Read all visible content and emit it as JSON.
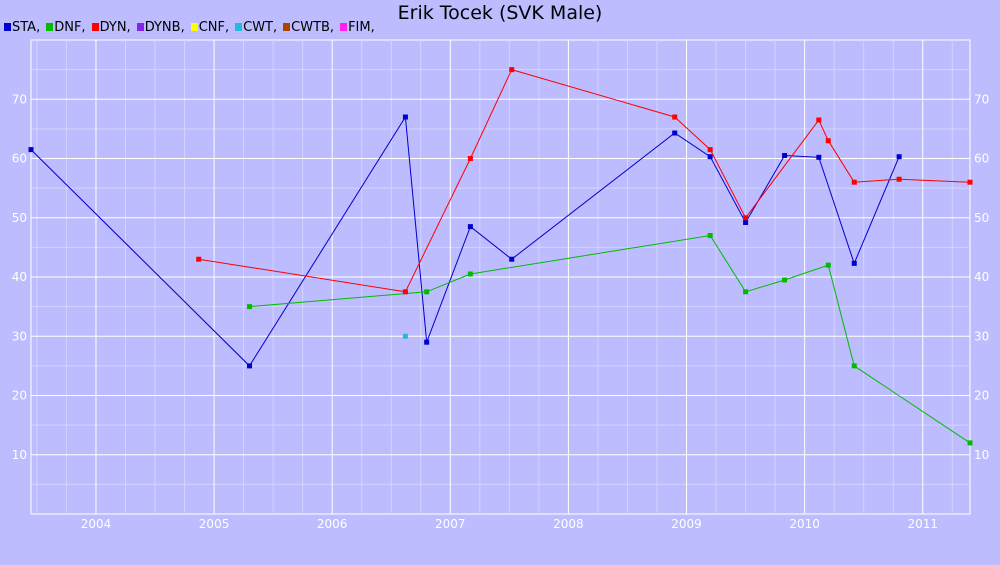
{
  "chart_data": {
    "type": "line",
    "title": "Erik Tocek (SVK Male)",
    "xlabel": "",
    "ylabel": "",
    "grid": true,
    "legend_position": "top-left",
    "xlim": [
      2003.45,
      2011.4
    ],
    "ylim": [
      0,
      80
    ],
    "x_ticks": [
      2004,
      2005,
      2006,
      2007,
      2008,
      2009,
      2010,
      2011
    ],
    "y_ticks": [
      10,
      20,
      30,
      40,
      50,
      60,
      70
    ],
    "series": [
      {
        "name": "STA",
        "color": "#0000cc",
        "points": [
          [
            2003.45,
            61.5
          ],
          [
            2005.3,
            25
          ],
          [
            2006.62,
            67
          ],
          [
            2006.8,
            29
          ],
          [
            2007.17,
            48.5
          ],
          [
            2007.52,
            43
          ],
          [
            2008.9,
            64.3
          ],
          [
            2009.2,
            60.3
          ],
          [
            2009.5,
            49.2
          ],
          [
            2009.83,
            60.5
          ],
          [
            2010.12,
            60.2
          ],
          [
            2010.42,
            42.3
          ],
          [
            2010.8,
            60.3
          ]
        ]
      },
      {
        "name": "DNF",
        "color": "#00bb00",
        "points": [
          [
            2005.3,
            35
          ],
          [
            2006.8,
            37.5
          ],
          [
            2007.17,
            40.5
          ],
          [
            2009.2,
            47
          ],
          [
            2009.5,
            37.5
          ],
          [
            2009.83,
            39.5
          ],
          [
            2010.2,
            42
          ],
          [
            2010.42,
            25
          ],
          [
            2011.4,
            12
          ]
        ]
      },
      {
        "name": "DYN",
        "color": "#ff0000",
        "points": [
          [
            2004.87,
            43
          ],
          [
            2006.62,
            37.5
          ],
          [
            2007.17,
            60
          ],
          [
            2007.52,
            75
          ],
          [
            2008.9,
            67
          ],
          [
            2009.2,
            61.5
          ],
          [
            2009.5,
            50
          ],
          [
            2010.12,
            66.5
          ],
          [
            2010.2,
            63
          ],
          [
            2010.42,
            56
          ],
          [
            2010.8,
            56.5
          ],
          [
            2011.4,
            56
          ]
        ]
      },
      {
        "name": "DYNB",
        "color": "#8822ee",
        "points": []
      },
      {
        "name": "CNF",
        "color": "#ffff00",
        "points": []
      },
      {
        "name": "CWT",
        "color": "#22bbdd",
        "points": [
          [
            2006.62,
            30
          ]
        ]
      },
      {
        "name": "CWTB",
        "color": "#aa4400",
        "points": []
      },
      {
        "name": "FIM",
        "color": "#ff22ee",
        "points": []
      }
    ]
  }
}
